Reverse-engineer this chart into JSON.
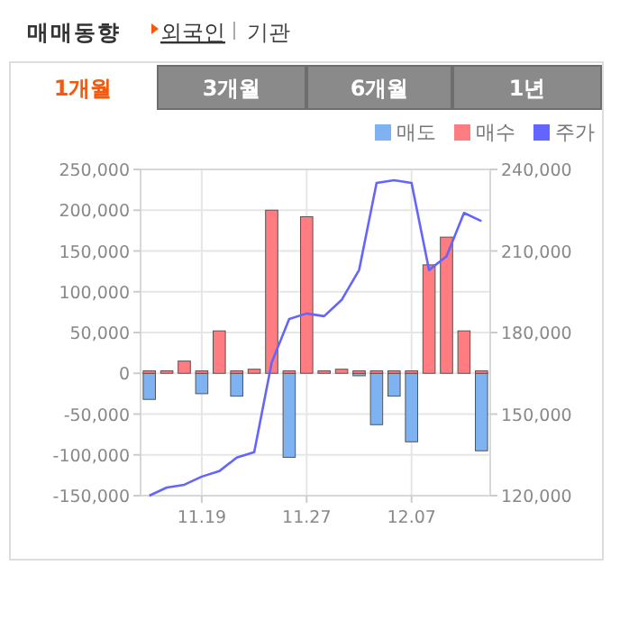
{
  "chart_data": {
    "type": "bar",
    "title": "매매동향",
    "annotations": [
      "외국인",
      "기관",
      "1개월",
      "3개월",
      "6개월",
      "1년"
    ],
    "categories": [
      null,
      null,
      null,
      "11.19",
      null,
      null,
      null,
      null,
      null,
      "11.27",
      null,
      null,
      null,
      null,
      null,
      "12.07",
      null,
      null,
      null,
      null
    ],
    "series": [
      {
        "name": "매도",
        "color": "#7eb2f0",
        "values": [
          -32000,
          null,
          null,
          -25000,
          null,
          -28000,
          null,
          null,
          -103000,
          null,
          null,
          null,
          -3000,
          -63000,
          -28000,
          -84000,
          null,
          null,
          null,
          -95000
        ]
      },
      {
        "name": "매수",
        "color": "#ff7c80",
        "values": [
          3000,
          3000,
          15000,
          3000,
          52000,
          3000,
          5000,
          200000,
          3000,
          192000,
          3000,
          5000,
          3000,
          3000,
          3000,
          3000,
          133000,
          167000,
          52000,
          3000
        ]
      },
      {
        "name": "주가",
        "type": "line",
        "axis": "y2",
        "color": "#6464ff",
        "values": [
          120000,
          123000,
          124000,
          127000,
          129000,
          134000,
          136000,
          169000,
          185000,
          187000,
          186000,
          192000,
          203000,
          235000,
          236000,
          235000,
          203000,
          208000,
          224000,
          221000
        ]
      }
    ],
    "ylim": [
      -150000,
      250000
    ],
    "yticks": [
      {
        "value": -150000,
        "label": "-150,000"
      },
      {
        "value": -100000,
        "label": "-100,000"
      },
      {
        "value": -50000,
        "label": "-50,000"
      },
      0,
      {
        "value": 50000,
        "label": "50,000"
      },
      {
        "value": 100000,
        "label": "100,000"
      },
      {
        "value": 150000,
        "label": "150,000"
      },
      {
        "value": 200000,
        "label": "200,000"
      },
      {
        "value": 250000,
        "label": "250,000"
      }
    ],
    "y2lim": [
      120000,
      240000
    ],
    "y2ticks": [
      {
        "value": 120000,
        "label": "120,000"
      },
      {
        "value": 150000,
        "label": "150,000"
      },
      {
        "value": 180000,
        "label": "180,000"
      },
      {
        "value": 210000,
        "label": "210,000"
      },
      {
        "value": 240000,
        "label": "240,000"
      }
    ],
    "grid": true,
    "legend": "top right"
  }
}
